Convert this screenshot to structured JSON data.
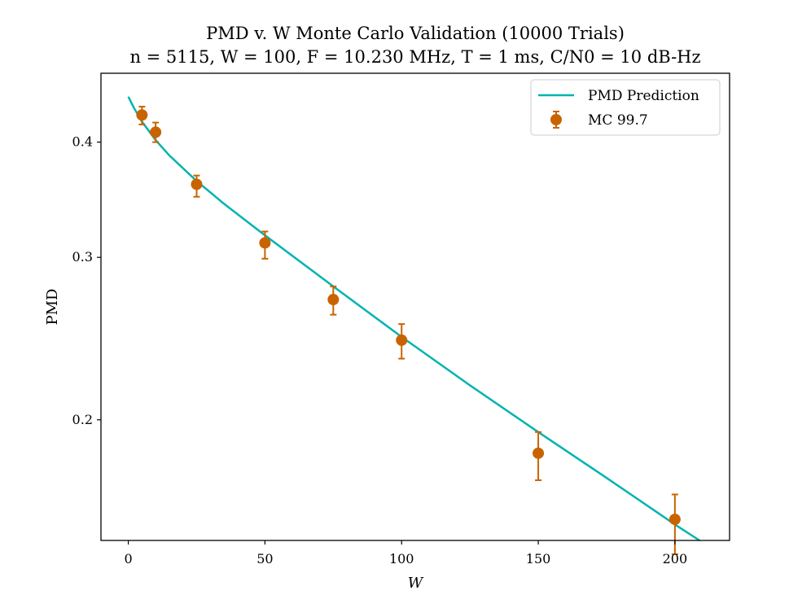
{
  "chart_data": {
    "type": "line",
    "title": "PMD v. W Monte Carlo Validation (10000 Trials)",
    "subtitle": "n = 5115, W = 100, F = 10.230 MHz, T = 1 ms, C/N0 = 10 dB-Hz",
    "xlabel": "W",
    "ylabel": "PMD",
    "xlim": [
      -10,
      220
    ],
    "ylim": [
      0.148,
      0.475
    ],
    "yscale": "log",
    "x_ticks": [
      0,
      50,
      100,
      150,
      200
    ],
    "y_ticks": [
      0.2,
      0.3,
      0.4
    ],
    "x_tick_labels": [
      "0",
      "50",
      "100",
      "150",
      "200"
    ],
    "y_tick_labels": [
      "0.2",
      "0.3",
      "0.4"
    ],
    "grid": false,
    "legend_position": "top-right",
    "series": [
      {
        "name": "PMD Prediction",
        "kind": "line",
        "color": "#00b3b0",
        "x": [
          0,
          2,
          5,
          10,
          15,
          25,
          35,
          50,
          75,
          100,
          125,
          150,
          175,
          200,
          209
        ],
        "y": [
          0.448,
          0.436,
          0.421,
          0.402,
          0.387,
          0.363,
          0.343,
          0.317,
          0.279,
          0.246,
          0.218,
          0.194,
          0.173,
          0.154,
          0.148
        ]
      },
      {
        "name": "MC 99.7",
        "kind": "errorbar",
        "color": "#c86400",
        "x": [
          5,
          10,
          25,
          50,
          75,
          100,
          150,
          200
        ],
        "y": [
          0.428,
          0.41,
          0.36,
          0.311,
          0.27,
          0.244,
          0.184,
          0.156
        ],
        "yerr_low": [
          0.418,
          0.4,
          0.349,
          0.299,
          0.26,
          0.233,
          0.172,
          0.143
        ],
        "yerr_high": [
          0.437,
          0.42,
          0.368,
          0.32,
          0.279,
          0.254,
          0.194,
          0.166
        ]
      }
    ]
  }
}
